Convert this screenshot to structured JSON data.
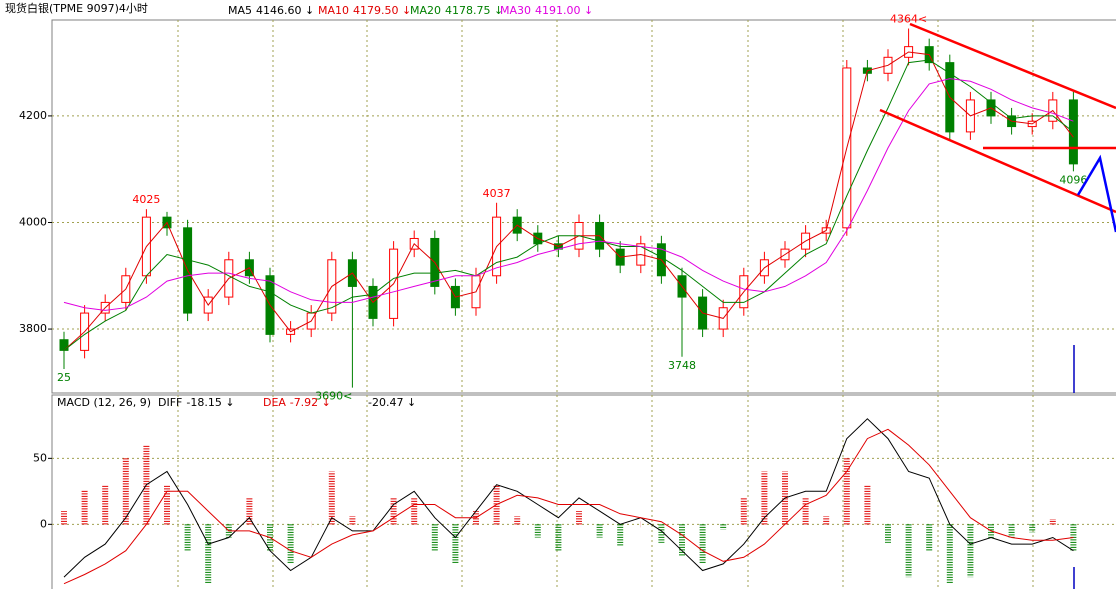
{
  "title": "现货白银(TPME 9097)4小时",
  "chart_data": [
    {
      "type": "candlestick",
      "up_color": "#ff0000",
      "down_color": "#008000",
      "high_label_color": "#ff0000",
      "low_label_color": "#008000",
      "candles": {
        "open": [
          3780,
          3760,
          3830,
          3850,
          3900,
          4010,
          3990,
          3830,
          3860,
          3930,
          3900,
          3790,
          3800,
          3830,
          3930,
          3880,
          3820,
          3950,
          3970,
          3880,
          3840,
          3900,
          4010,
          3980,
          3960,
          3950,
          4000,
          3950,
          3920,
          3960,
          3900,
          3860,
          3800,
          3840,
          3900,
          3930,
          3950,
          3980,
          3990,
          4290,
          4280,
          4310,
          4330,
          4300,
          4170,
          4230,
          4200,
          4180,
          4190,
          4230
        ],
        "high": [
          3795,
          3845,
          3865,
          3915,
          4025,
          4020,
          4005,
          3875,
          3945,
          3945,
          3915,
          3815,
          3845,
          3945,
          3945,
          3895,
          3965,
          3985,
          3985,
          3895,
          3915,
          4037,
          4025,
          3995,
          3975,
          4015,
          4015,
          3965,
          3975,
          3975,
          3915,
          3875,
          3855,
          3915,
          3945,
          3965,
          3995,
          4005,
          4305,
          4305,
          4325,
          4364,
          4345,
          4315,
          4245,
          4245,
          4215,
          4205,
          4245,
          4245
        ],
        "low": [
          3725,
          3745,
          3815,
          3835,
          3885,
          3975,
          3815,
          3815,
          3845,
          3885,
          3775,
          3775,
          3785,
          3815,
          3690,
          3805,
          3805,
          3935,
          3865,
          3825,
          3825,
          3885,
          3965,
          3945,
          3935,
          3935,
          3935,
          3905,
          3905,
          3885,
          3748,
          3785,
          3785,
          3825,
          3885,
          3915,
          3935,
          3965,
          3975,
          4265,
          4265,
          4295,
          4285,
          4155,
          4155,
          4185,
          4165,
          4165,
          4175,
          4096
        ],
        "close": [
          3760,
          3830,
          3850,
          3900,
          4010,
          3990,
          3830,
          3860,
          3930,
          3900,
          3790,
          3800,
          3830,
          3930,
          3880,
          3820,
          3950,
          3970,
          3880,
          3840,
          3900,
          4010,
          3980,
          3960,
          3950,
          4000,
          3950,
          3920,
          3960,
          3900,
          3860,
          3800,
          3840,
          3900,
          3930,
          3950,
          3980,
          3990,
          4290,
          4280,
          4310,
          4330,
          4300,
          4170,
          4230,
          4200,
          4180,
          4190,
          4230,
          4110
        ],
        "high_labels": [
          null,
          null,
          null,
          null,
          "4025",
          null,
          null,
          null,
          null,
          null,
          null,
          null,
          null,
          null,
          null,
          null,
          null,
          null,
          null,
          null,
          null,
          "4037",
          null,
          null,
          null,
          null,
          null,
          null,
          null,
          null,
          null,
          null,
          null,
          null,
          null,
          null,
          null,
          null,
          null,
          null,
          null,
          "4364<",
          null,
          null,
          null,
          null,
          null,
          null,
          null,
          null
        ],
        "low_labels": [
          "25",
          null,
          null,
          null,
          null,
          null,
          null,
          null,
          null,
          null,
          null,
          null,
          null,
          null,
          "3690<",
          null,
          null,
          null,
          null,
          null,
          null,
          null,
          null,
          null,
          null,
          null,
          null,
          null,
          null,
          null,
          "3748",
          null,
          null,
          null,
          null,
          null,
          null,
          null,
          null,
          null,
          null,
          null,
          null,
          null,
          null,
          null,
          null,
          null,
          null,
          "4096"
        ]
      },
      "series": [
        {
          "name": "MA5",
          "reading": "4146.60 ↓",
          "color": "#000000"
        },
        {
          "name": "MA10",
          "reading": "4179.50 ↓",
          "color": "#e00000",
          "values": [
            3760,
            3795,
            3840,
            3875,
            3955,
            4000,
            3910,
            3845,
            3895,
            3915,
            3845,
            3795,
            3815,
            3880,
            3905,
            3850,
            3885,
            3960,
            3925,
            3860,
            3870,
            3955,
            3995,
            3970,
            3955,
            3975,
            3975,
            3935,
            3940,
            3930,
            3880,
            3830,
            3820,
            3870,
            3915,
            3940,
            3965,
            3985,
            4140,
            4285,
            4295,
            4320,
            4315,
            4235,
            4200,
            4215,
            4190,
            4185,
            4210,
            4160
          ]
        },
        {
          "name": "MA20",
          "reading": "4178.75 ↓",
          "color": "#008000",
          "values": [
            3760,
            3790,
            3815,
            3835,
            3900,
            3940,
            3930,
            3920,
            3900,
            3880,
            3870,
            3845,
            3830,
            3840,
            3860,
            3865,
            3895,
            3905,
            3905,
            3910,
            3900,
            3925,
            3935,
            3960,
            3975,
            3975,
            3965,
            3955,
            3955,
            3935,
            3910,
            3880,
            3850,
            3850,
            3870,
            3905,
            3940,
            3960,
            4050,
            4135,
            4215,
            4300,
            4305,
            4280,
            4255,
            4225,
            4195,
            4200,
            4200,
            4170
          ]
        },
        {
          "name": "MA30",
          "reading": "4191.00 ↓",
          "color": "#e000e0",
          "values": [
            3850,
            3840,
            3835,
            3840,
            3860,
            3890,
            3900,
            3905,
            3905,
            3895,
            3890,
            3870,
            3855,
            3850,
            3850,
            3860,
            3870,
            3880,
            3890,
            3900,
            3900,
            3915,
            3925,
            3940,
            3950,
            3960,
            3965,
            3960,
            3955,
            3950,
            3935,
            3910,
            3890,
            3875,
            3870,
            3880,
            3900,
            3925,
            3985,
            4060,
            4140,
            4210,
            4260,
            4270,
            4265,
            4250,
            4230,
            4215,
            4205,
            4190
          ]
        }
      ],
      "ylim": [
        3680,
        4380
      ],
      "yticks": [
        3800,
        4000,
        4200
      ],
      "grid": true
    },
    {
      "type": "macd",
      "title": "MACD (12, 26, 9)",
      "series": [
        {
          "name": "DIFF",
          "reading": "-18.15 ↓",
          "color": "#000000",
          "values": [
            -40,
            -25,
            -15,
            5,
            30,
            40,
            15,
            -15,
            -10,
            5,
            -20,
            -35,
            -25,
            5,
            -5,
            -5,
            15,
            25,
            5,
            -10,
            10,
            30,
            25,
            15,
            5,
            20,
            10,
            0,
            5,
            -5,
            -20,
            -35,
            -30,
            -15,
            5,
            20,
            25,
            25,
            65,
            80,
            65,
            40,
            35,
            0,
            -15,
            -10,
            -15,
            -15,
            -10,
            -20
          ]
        },
        {
          "name": "DEA",
          "reading": "-7.92 ↓",
          "color": "#e00000",
          "values": [
            -45,
            -38,
            -30,
            -20,
            0,
            25,
            25,
            10,
            -5,
            -5,
            -10,
            -20,
            -25,
            -15,
            -8,
            -5,
            5,
            15,
            15,
            5,
            5,
            15,
            22,
            20,
            15,
            15,
            15,
            8,
            5,
            2,
            -8,
            -20,
            -28,
            -25,
            -15,
            0,
            15,
            22,
            40,
            65,
            72,
            60,
            45,
            25,
            5,
            -5,
            -10,
            -12,
            -12,
            -10
          ]
        }
      ],
      "histogram": {
        "reading": "-20.47 ↓",
        "up_color": "#e00000",
        "down_color": "#008000",
        "values": [
          10,
          26,
          30,
          50,
          60,
          30,
          -20,
          -45,
          -10,
          20,
          -20,
          -30,
          0,
          40,
          6,
          0,
          20,
          20,
          -20,
          -30,
          10,
          30,
          6,
          -10,
          -20,
          10,
          -10,
          -16,
          0,
          -14,
          -24,
          -30,
          -4,
          20,
          40,
          40,
          20,
          6,
          50,
          30,
          -14,
          -40,
          -20,
          -45,
          -40,
          -10,
          -10,
          -6,
          4,
          -20
        ]
      },
      "ylim": [
        -49,
        98
      ],
      "yticks": [
        0,
        50
      ],
      "grid": true
    }
  ]
}
